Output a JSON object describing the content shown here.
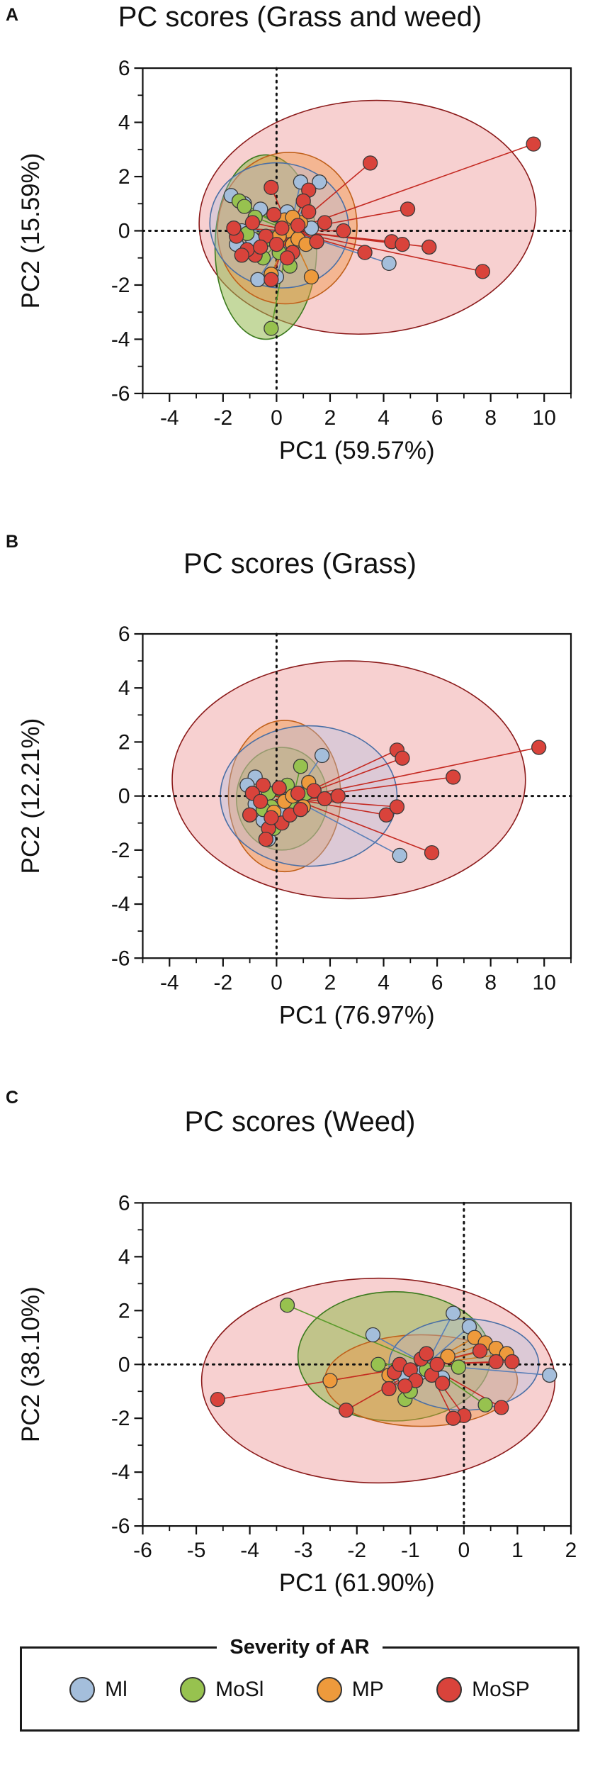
{
  "legend": {
    "title": "Severity of AR",
    "items": [
      {
        "label": "Ml",
        "color": "#a4bedb"
      },
      {
        "label": "MoSl",
        "color": "#97c24f"
      },
      {
        "label": "MP",
        "color": "#ee9a3c"
      },
      {
        "label": "MoSP",
        "color": "#d9433b"
      }
    ]
  },
  "chart_data": [
    {
      "type": "scatter",
      "panel": "A",
      "title": "PC scores (Grass and weed)",
      "xlabel": "PC1 (59.57%)",
      "ylabel": "PC2 (15.59%)",
      "xlim": [
        -5,
        11
      ],
      "ylim": [
        -6,
        6
      ],
      "xticks": [
        -4,
        -2,
        0,
        2,
        4,
        6,
        8,
        10
      ],
      "yticks": [
        -6,
        -4,
        -2,
        0,
        2,
        4,
        6
      ],
      "centroid": [
        0.5,
        0.0
      ],
      "ellipses": [
        {
          "group": "MoSP",
          "cx": 3.4,
          "cy": 0.5,
          "rx": 6.3,
          "ry": 4.3,
          "angle": 4
        },
        {
          "group": "MoSl",
          "cx": -0.4,
          "cy": -0.6,
          "rx": 1.9,
          "ry": 3.4,
          "angle": 0
        },
        {
          "group": "MP",
          "cx": 0.4,
          "cy": 0.1,
          "rx": 2.6,
          "ry": 2.8,
          "angle": -10
        },
        {
          "group": "Ml",
          "cx": 0.1,
          "cy": 0.2,
          "rx": 2.6,
          "ry": 2.3,
          "angle": -10
        }
      ],
      "series": [
        {
          "name": "Ml",
          "points": [
            [
              -1.7,
              1.3
            ],
            [
              -1.2,
              1.0
            ],
            [
              -0.6,
              0.8
            ],
            [
              0.9,
              1.8
            ],
            [
              1.6,
              1.8
            ],
            [
              -1.3,
              0.0
            ],
            [
              -0.9,
              -0.3
            ],
            [
              1.3,
              0.1
            ],
            [
              4.2,
              -1.2
            ],
            [
              -0.7,
              -1.8
            ],
            [
              0.0,
              -1.7
            ],
            [
              -1.5,
              -0.5
            ],
            [
              0.4,
              0.7
            ]
          ]
        },
        {
          "name": "MoSl",
          "points": [
            [
              -1.4,
              1.1
            ],
            [
              -1.2,
              0.9
            ],
            [
              -0.8,
              0.5
            ],
            [
              -0.3,
              -0.3
            ],
            [
              0.1,
              -0.8
            ],
            [
              0.5,
              -1.3
            ],
            [
              -0.2,
              -3.6
            ],
            [
              -1.1,
              -0.1
            ],
            [
              0.3,
              0.3
            ],
            [
              -0.5,
              -1.0
            ]
          ]
        },
        {
          "name": "MP",
          "points": [
            [
              0.4,
              0.0
            ],
            [
              0.6,
              -0.5
            ],
            [
              1.3,
              -1.7
            ],
            [
              0.8,
              -0.3
            ],
            [
              0.3,
              0.4
            ],
            [
              -0.2,
              -1.6
            ],
            [
              0.9,
              0.3
            ],
            [
              0.1,
              -0.2
            ],
            [
              1.1,
              -0.5
            ],
            [
              0.6,
              0.5
            ]
          ]
        },
        {
          "name": "MoSP",
          "points": [
            [
              3.5,
              2.5
            ],
            [
              9.6,
              3.2
            ],
            [
              4.9,
              0.8
            ],
            [
              1.2,
              1.5
            ],
            [
              1.0,
              1.1
            ],
            [
              1.2,
              0.7
            ],
            [
              -0.2,
              1.6
            ],
            [
              2.5,
              0.0
            ],
            [
              3.3,
              -0.8
            ],
            [
              4.3,
              -0.4
            ],
            [
              4.7,
              -0.5
            ],
            [
              5.7,
              -0.6
            ],
            [
              7.7,
              -1.5
            ],
            [
              -0.8,
              -0.9
            ],
            [
              -0.2,
              -1.8
            ],
            [
              -1.5,
              -0.2
            ],
            [
              -1.1,
              -0.7
            ],
            [
              -0.4,
              -0.2
            ],
            [
              0.2,
              0.1
            ],
            [
              0.6,
              -0.8
            ],
            [
              1.5,
              -0.4
            ],
            [
              -1.6,
              0.1
            ],
            [
              -0.9,
              0.3
            ],
            [
              0.0,
              -0.5
            ],
            [
              0.8,
              0.2
            ],
            [
              -1.3,
              -0.9
            ],
            [
              -0.6,
              -0.6
            ],
            [
              0.4,
              -1.0
            ],
            [
              1.8,
              0.3
            ],
            [
              -0.1,
              0.6
            ]
          ]
        }
      ]
    },
    {
      "type": "scatter",
      "panel": "B",
      "title": "PC scores (Grass)",
      "xlabel": "PC1 (76.97%)",
      "ylabel": "PC2 (12.21%)",
      "xlim": [
        -5,
        11
      ],
      "ylim": [
        -6,
        6
      ],
      "xticks": [
        -4,
        -2,
        0,
        2,
        4,
        6,
        8,
        10
      ],
      "yticks": [
        -6,
        -4,
        -2,
        0,
        2,
        4,
        6
      ],
      "centroid": [
        0.6,
        -0.1
      ],
      "ellipses": [
        {
          "group": "MoSP",
          "cx": 2.7,
          "cy": 0.6,
          "rx": 6.6,
          "ry": 4.4,
          "angle": 0
        },
        {
          "group": "MoSl",
          "cx": 0.2,
          "cy": -0.1,
          "rx": 1.7,
          "ry": 1.9,
          "angle": 0
        },
        {
          "group": "MP",
          "cx": 0.3,
          "cy": 0.0,
          "rx": 2.1,
          "ry": 2.8,
          "angle": 0
        },
        {
          "group": "Ml",
          "cx": 1.2,
          "cy": 0.0,
          "rx": 3.3,
          "ry": 2.6,
          "angle": 0
        }
      ],
      "series": [
        {
          "name": "Ml",
          "points": [
            [
              1.7,
              1.5
            ],
            [
              -0.8,
              0.7
            ],
            [
              -1.1,
              0.4
            ],
            [
              -0.8,
              -0.3
            ],
            [
              -0.5,
              -0.9
            ],
            [
              -0.3,
              -1.6
            ],
            [
              4.6,
              -2.2
            ],
            [
              0.2,
              -0.5
            ]
          ]
        },
        {
          "name": "MoSl",
          "points": [
            [
              0.9,
              1.1
            ],
            [
              -0.3,
              0.1
            ],
            [
              -0.2,
              -0.4
            ],
            [
              0.5,
              -0.3
            ],
            [
              -0.1,
              -1.2
            ],
            [
              0.4,
              0.4
            ],
            [
              1.1,
              0.1
            ],
            [
              -0.5,
              -0.5
            ]
          ]
        },
        {
          "name": "MP",
          "points": [
            [
              1.2,
              0.5
            ],
            [
              0.3,
              -0.2
            ],
            [
              0.6,
              0.0
            ],
            [
              1.0,
              -0.4
            ],
            [
              -0.1,
              -0.6
            ]
          ]
        },
        {
          "name": "MoSP",
          "points": [
            [
              4.5,
              1.7
            ],
            [
              9.8,
              1.8
            ],
            [
              4.7,
              1.4
            ],
            [
              6.6,
              0.7
            ],
            [
              4.1,
              -0.7
            ],
            [
              4.5,
              -0.4
            ],
            [
              5.8,
              -2.1
            ],
            [
              -0.5,
              0.4
            ],
            [
              -0.9,
              0.1
            ],
            [
              -0.6,
              -0.2
            ],
            [
              -0.3,
              -1.2
            ],
            [
              0.2,
              -1.0
            ],
            [
              -0.2,
              -0.8
            ],
            [
              0.8,
              0.1
            ],
            [
              1.4,
              0.2
            ],
            [
              -1.0,
              -0.7
            ],
            [
              0.1,
              0.3
            ],
            [
              0.5,
              -0.7
            ],
            [
              -0.4,
              -1.6
            ],
            [
              1.8,
              -0.1
            ],
            [
              0.9,
              -0.5
            ],
            [
              2.3,
              0.0
            ]
          ]
        }
      ]
    },
    {
      "type": "scatter",
      "panel": "C",
      "title": "PC scores (Weed)",
      "xlabel": "PC1 (61.90%)",
      "ylabel": "PC2 (38.10%)",
      "xlim": [
        -6,
        2
      ],
      "ylim": [
        -6,
        6
      ],
      "xticks": [
        -6,
        -5,
        -4,
        -3,
        -2,
        -1,
        0,
        1,
        2
      ],
      "yticks": [
        -6,
        -4,
        -2,
        0,
        2,
        4,
        6
      ],
      "centroid": [
        -0.7,
        0.0
      ],
      "ellipses": [
        {
          "group": "MoSP",
          "cx": -1.6,
          "cy": -0.6,
          "rx": 3.3,
          "ry": 3.8,
          "angle": 0
        },
        {
          "group": "MoSl",
          "cx": -1.3,
          "cy": 0.3,
          "rx": 1.8,
          "ry": 2.4,
          "angle": 0
        },
        {
          "group": "MP",
          "cx": -0.8,
          "cy": -0.6,
          "rx": 1.8,
          "ry": 1.7,
          "angle": 0
        },
        {
          "group": "Ml",
          "cx": 0.0,
          "cy": 0.0,
          "rx": 1.4,
          "ry": 1.7,
          "angle": 0
        }
      ],
      "series": [
        {
          "name": "Ml",
          "points": [
            [
              -0.2,
              1.9
            ],
            [
              0.1,
              1.4
            ],
            [
              1.6,
              -0.4
            ],
            [
              -1.7,
              1.1
            ],
            [
              -0.4,
              -0.5
            ],
            [
              -0.8,
              -0.3
            ],
            [
              -1.1,
              -0.5
            ]
          ]
        },
        {
          "name": "MoSl",
          "points": [
            [
              -3.3,
              2.2
            ],
            [
              -1.6,
              0.0
            ],
            [
              -1.1,
              -1.3
            ],
            [
              -1.0,
              -1.0
            ],
            [
              -0.7,
              -0.2
            ],
            [
              -0.1,
              -0.1
            ],
            [
              0.4,
              -1.5
            ]
          ]
        },
        {
          "name": "MP",
          "points": [
            [
              -2.5,
              -0.6
            ],
            [
              0.2,
              1.0
            ],
            [
              0.4,
              0.8
            ],
            [
              0.6,
              0.6
            ],
            [
              0.8,
              0.4
            ],
            [
              -0.3,
              0.3
            ],
            [
              -1.4,
              -0.4
            ]
          ]
        },
        {
          "name": "MoSP",
          "points": [
            [
              -4.6,
              -1.3
            ],
            [
              -2.2,
              -1.7
            ],
            [
              0.0,
              -1.9
            ],
            [
              0.7,
              -1.6
            ],
            [
              0.9,
              0.1
            ],
            [
              0.6,
              0.1
            ],
            [
              0.3,
              0.5
            ],
            [
              -0.2,
              -2.0
            ],
            [
              -1.3,
              -0.3
            ],
            [
              -1.2,
              0.0
            ],
            [
              -1.0,
              -0.2
            ],
            [
              -0.9,
              -0.6
            ],
            [
              -0.8,
              0.2
            ],
            [
              -0.6,
              -0.4
            ],
            [
              -0.5,
              0.0
            ],
            [
              -0.4,
              -0.7
            ],
            [
              -1.1,
              -0.8
            ],
            [
              -0.7,
              0.4
            ],
            [
              -1.4,
              -0.9
            ]
          ]
        }
      ]
    }
  ]
}
